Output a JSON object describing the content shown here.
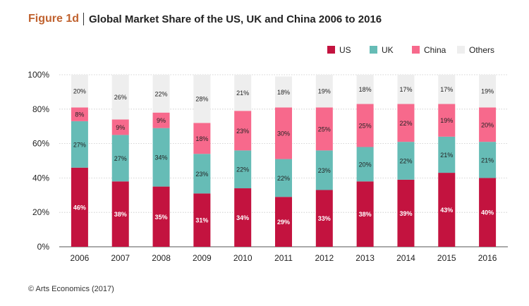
{
  "figure": {
    "label": "Figure 1d",
    "title": "Global Market Share of the US, UK and China 2006 to 2016"
  },
  "source": "© Arts Economics (2017)",
  "colors": {
    "US": "#c3133f",
    "UK": "#66bcb6",
    "China": "#f7698c",
    "Others": "#eeeeee",
    "axis_text": "#222222",
    "grid": "#c8c8c8"
  },
  "chart_data": {
    "type": "bar",
    "stacked": true,
    "title": "Global Market Share of the US, UK and China 2006 to 2016",
    "xlabel": "",
    "ylabel": "",
    "ylim": [
      0,
      100
    ],
    "yticks": [
      "0%",
      "20%",
      "40%",
      "60%",
      "80%",
      "100%"
    ],
    "legend_position": "top-right",
    "grid": true,
    "categories": [
      "2006",
      "2007",
      "2008",
      "2009",
      "2010",
      "2011",
      "2012",
      "2013",
      "2014",
      "2015",
      "2016"
    ],
    "series": [
      {
        "name": "US",
        "values": [
          46,
          38,
          35,
          31,
          34,
          29,
          33,
          38,
          39,
          43,
          40
        ]
      },
      {
        "name": "UK",
        "values": [
          27,
          27,
          34,
          23,
          22,
          22,
          23,
          20,
          22,
          21,
          21
        ]
      },
      {
        "name": "China",
        "values": [
          8,
          9,
          9,
          18,
          23,
          30,
          25,
          25,
          22,
          19,
          20
        ]
      },
      {
        "name": "Others",
        "values": [
          20,
          26,
          22,
          28,
          21,
          18,
          19,
          18,
          17,
          17,
          19
        ]
      }
    ]
  }
}
